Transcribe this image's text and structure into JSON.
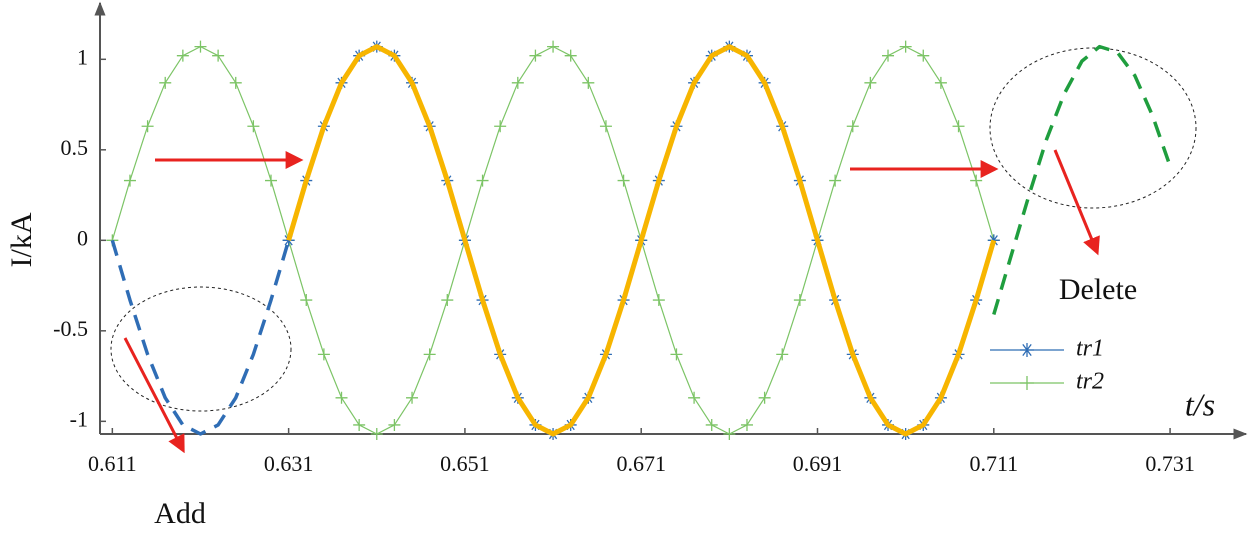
{
  "chart_data": {
    "type": "line",
    "x": [
      0.611,
      0.613,
      0.615,
      0.617,
      0.619,
      0.621,
      0.623,
      0.625,
      0.627,
      0.629,
      0.631,
      0.633,
      0.635,
      0.637,
      0.639,
      0.641,
      0.643,
      0.645,
      0.647,
      0.649,
      0.651,
      0.653,
      0.655,
      0.657,
      0.659,
      0.661,
      0.663,
      0.665,
      0.667,
      0.669,
      0.671,
      0.673,
      0.675,
      0.677,
      0.679,
      0.681,
      0.683,
      0.685,
      0.687,
      0.689,
      0.691,
      0.693,
      0.695,
      0.697,
      0.699,
      0.701,
      0.703,
      0.705,
      0.707,
      0.709,
      0.711,
      0.713,
      0.715,
      0.717,
      0.719,
      0.721,
      0.723,
      0.725,
      0.727,
      0.729,
      0.731
    ],
    "series": [
      {
        "name": "tr2",
        "color": "#7cc466",
        "marker": "plus",
        "width": 1.2,
        "dashed": false,
        "values": [
          0,
          0.33,
          0.63,
          0.87,
          1.02,
          1.07,
          1.02,
          0.87,
          0.63,
          0.33,
          0,
          -0.33,
          -0.63,
          -0.87,
          -1.02,
          -1.07,
          -1.02,
          -0.87,
          -0.63,
          -0.33,
          0,
          0.33,
          0.63,
          0.87,
          1.02,
          1.07,
          1.02,
          0.87,
          0.63,
          0.33,
          0,
          -0.33,
          -0.63,
          -0.87,
          -1.02,
          -1.07,
          -1.02,
          -0.87,
          -0.63,
          -0.33,
          0,
          0.33,
          0.63,
          0.87,
          1.02,
          1.07,
          1.02,
          0.87,
          0.63,
          0.33,
          0,
          null,
          null,
          null,
          null,
          null,
          null,
          null,
          null,
          null,
          null
        ]
      },
      {
        "name": "tr1",
        "color": "#2f6db5",
        "marker": "star",
        "width": 1.2,
        "dashed": false,
        "values": [
          null,
          null,
          null,
          null,
          null,
          null,
          null,
          null,
          null,
          null,
          0,
          0.33,
          0.63,
          0.87,
          1.02,
          1.07,
          1.02,
          0.87,
          0.63,
          0.33,
          0,
          -0.33,
          -0.63,
          -0.87,
          -1.02,
          -1.07,
          -1.02,
          -0.87,
          -0.63,
          -0.33,
          0,
          0.33,
          0.63,
          0.87,
          1.02,
          1.07,
          1.02,
          0.87,
          0.63,
          0.33,
          0,
          -0.33,
          -0.63,
          -0.87,
          -1.02,
          -1.07,
          -1.02,
          -0.87,
          -0.63,
          -0.33,
          0,
          null,
          null,
          null,
          null,
          null,
          null,
          null,
          null,
          null,
          null
        ]
      },
      {
        "color": "#f7b500",
        "width": 5,
        "dashed": false,
        "values": [
          null,
          null,
          null,
          null,
          null,
          null,
          null,
          null,
          null,
          null,
          0,
          0.33,
          0.63,
          0.87,
          1.02,
          1.07,
          1.02,
          0.87,
          0.63,
          0.33,
          0,
          -0.33,
          -0.63,
          -0.87,
          -1.02,
          -1.07,
          -1.02,
          -0.87,
          -0.63,
          -0.33,
          0,
          0.33,
          0.63,
          0.87,
          1.02,
          1.07,
          1.02,
          0.87,
          0.63,
          0.33,
          0,
          -0.33,
          -0.63,
          -0.87,
          -1.02,
          -1.07,
          -1.02,
          -0.87,
          -0.63,
          -0.33,
          0,
          null,
          null,
          null,
          null,
          null,
          null,
          null,
          null,
          null,
          null
        ]
      },
      {
        "color": "#2f6db5",
        "width": 3.5,
        "dashed": true,
        "values": [
          0,
          -0.33,
          -0.63,
          -0.87,
          -1.02,
          -1.07,
          -1.02,
          -0.87,
          -0.63,
          -0.33,
          0,
          null,
          null,
          null,
          null,
          null,
          null,
          null,
          null,
          null,
          null,
          null,
          null,
          null,
          null,
          null,
          null,
          null,
          null,
          null,
          null,
          null,
          null,
          null,
          null,
          null,
          null,
          null,
          null,
          null,
          null,
          null,
          null,
          null,
          null,
          null,
          null,
          null,
          null,
          null,
          null,
          null,
          null,
          null,
          null,
          null,
          null,
          null,
          null,
          null,
          null
        ]
      },
      {
        "color": "#1f9e3e",
        "width": 3.5,
        "dashed": true,
        "values": [
          null,
          null,
          null,
          null,
          null,
          null,
          null,
          null,
          null,
          null,
          null,
          null,
          null,
          null,
          null,
          null,
          null,
          null,
          null,
          null,
          null,
          null,
          null,
          null,
          null,
          null,
          null,
          null,
          null,
          null,
          null,
          null,
          null,
          null,
          null,
          null,
          null,
          null,
          null,
          null,
          null,
          null,
          null,
          null,
          null,
          null,
          null,
          null,
          null,
          null,
          -0.41,
          -0.08,
          0.25,
          0.56,
          0.81,
          0.99,
          1.07,
          1.04,
          0.91,
          0.69,
          0.41
        ]
      }
    ],
    "xlim": [
      0.6096,
      0.7395
    ],
    "ylim": [
      -1.07,
      1.3
    ],
    "xticks": [
      0.611,
      0.631,
      0.651,
      0.671,
      0.691,
      0.711,
      0.731
    ],
    "yticks": [
      -1,
      -0.5,
      0,
      0.5,
      1
    ],
    "ylabel": "I/kA",
    "xlabel": "t/s",
    "annotations": [
      "Add",
      "Delete"
    ],
    "legend": "lower right"
  }
}
